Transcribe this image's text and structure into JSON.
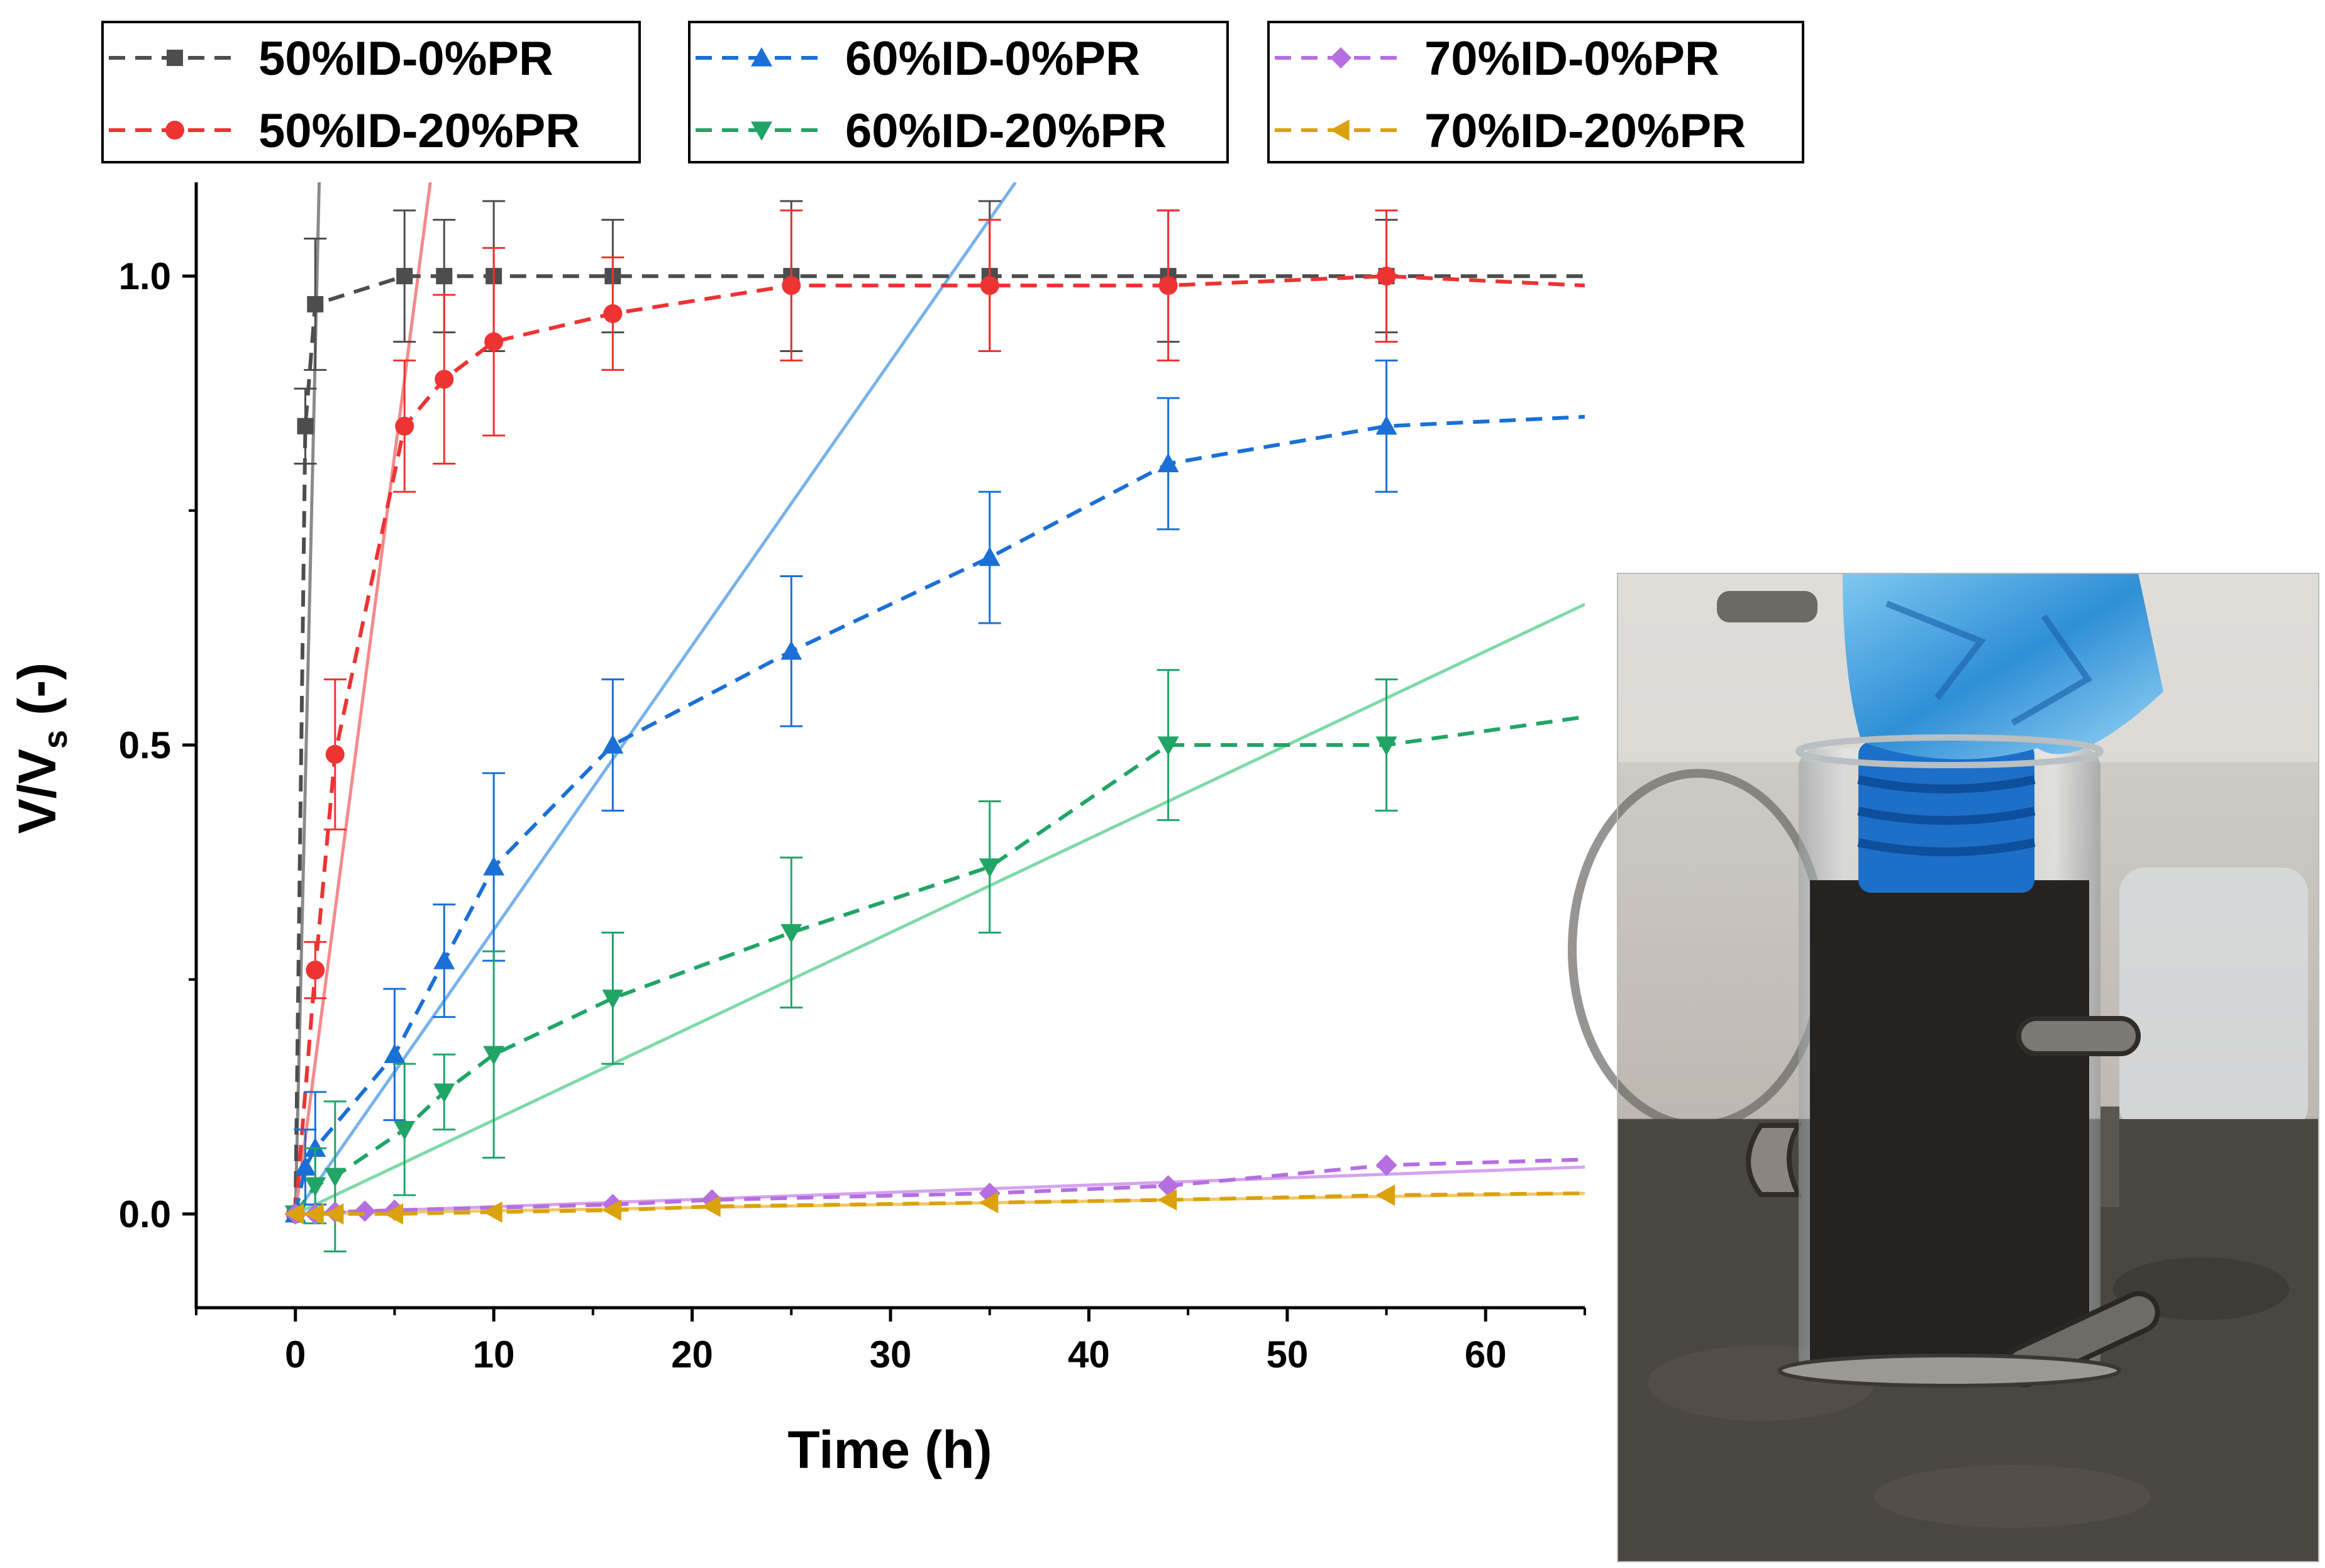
{
  "chart_data": {
    "type": "line",
    "xlabel": "Time (h)",
    "ylabel": "V/V",
    "ylabel_sub": "s",
    "ylabel_suffix": " (-)",
    "xlim": [
      -5,
      65
    ],
    "ylim": [
      -0.1,
      1.1
    ],
    "x_ticks": [
      0,
      10,
      20,
      30,
      40,
      50,
      60
    ],
    "y_ticks": [
      0.0,
      0.5,
      1.0
    ],
    "y_tick_labels": [
      "0.0",
      "0.5",
      "1.0"
    ],
    "legend_placement": "top",
    "series": [
      {
        "name": "50%ID-0%PR",
        "color": "#4d4d4d",
        "marker": "square",
        "x": [
          0,
          0.5,
          1,
          5.5,
          7.5,
          10,
          16,
          25,
          35,
          44,
          55,
          65
        ],
        "y": [
          0,
          0.84,
          0.97,
          1.0,
          1.0,
          1.0,
          1.0,
          1.0,
          1.0,
          1.0,
          1.0,
          1.0
        ],
        "err": [
          0,
          0.04,
          0.07,
          0.07,
          0.06,
          0.08,
          0.06,
          0.08,
          0.08,
          0.07,
          0.06,
          0
        ],
        "fit": [
          [
            0,
            0
          ],
          [
            1.2,
            1.1
          ]
        ],
        "fit_color": "#8a8a8a"
      },
      {
        "name": "50%ID-20%PR",
        "color": "#ee3333",
        "marker": "circle",
        "x": [
          0,
          1,
          2,
          5.5,
          7.5,
          10,
          16,
          25,
          35,
          44,
          55,
          65
        ],
        "y": [
          0,
          0.26,
          0.49,
          0.84,
          0.89,
          0.93,
          0.96,
          0.99,
          0.99,
          0.99,
          1.0,
          0.99
        ],
        "err": [
          0,
          0.03,
          0.08,
          0.07,
          0.09,
          0.1,
          0.06,
          0.08,
          0.07,
          0.08,
          0.07,
          0
        ],
        "fit": [
          [
            0,
            0
          ],
          [
            6.8,
            1.1
          ]
        ],
        "fit_color": "#f48a8a"
      },
      {
        "name": "60%ID-0%PR",
        "color": "#1a70d6",
        "marker": "triangle-up",
        "x": [
          0,
          0.5,
          1,
          5,
          7.5,
          10,
          16,
          25,
          35,
          44,
          55,
          65
        ],
        "y": [
          0,
          0.05,
          0.07,
          0.17,
          0.27,
          0.37,
          0.5,
          0.6,
          0.7,
          0.8,
          0.84,
          0.85
        ],
        "err": [
          0,
          0.04,
          0.06,
          0.07,
          0.06,
          0.1,
          0.07,
          0.08,
          0.07,
          0.07,
          0.07,
          0
        ],
        "fit": [
          [
            0,
            0
          ],
          [
            36.3,
            1.1
          ]
        ],
        "fit_color": "#78b2ea"
      },
      {
        "name": "60%ID-20%PR",
        "color": "#20a567",
        "marker": "triangle-down",
        "x": [
          0,
          1,
          2,
          5.5,
          7.5,
          10,
          16,
          25,
          35,
          44,
          55,
          65
        ],
        "y": [
          0,
          0.03,
          0.04,
          0.09,
          0.13,
          0.17,
          0.23,
          0.3,
          0.37,
          0.5,
          0.5,
          0.53
        ],
        "err": [
          0,
          0.04,
          0.08,
          0.07,
          0.04,
          0.11,
          0.07,
          0.08,
          0.07,
          0.08,
          0.07,
          0
        ],
        "fit": [
          [
            0,
            0
          ],
          [
            65,
            0.65
          ]
        ],
        "fit_color": "#7fd9a9"
      },
      {
        "name": "70%ID-0%PR",
        "color": "#b56fe0",
        "marker": "diamond",
        "x": [
          0,
          1,
          2,
          3.5,
          5,
          16,
          21,
          35,
          44,
          55,
          65
        ],
        "y": [
          0,
          0,
          0.002,
          0.003,
          0.004,
          0.01,
          0.015,
          0.022,
          0.03,
          0.052,
          0.058
        ],
        "fit": [
          [
            0,
            0
          ],
          [
            65,
            0.05
          ]
        ],
        "fit_color": "#d5a3f0"
      },
      {
        "name": "70%ID-20%PR",
        "color": "#dba20e",
        "marker": "triangle-left",
        "x": [
          0,
          1,
          2,
          5,
          10,
          16,
          21,
          35,
          44,
          55,
          65
        ],
        "y": [
          0,
          0,
          0,
          0,
          0.002,
          0.004,
          0.008,
          0.012,
          0.015,
          0.02,
          0.022
        ],
        "fit": [
          [
            0,
            0
          ],
          [
            65,
            0.022
          ]
        ],
        "fit_color": "#efc96a"
      }
    ]
  },
  "photo": {
    "description_icon": "photo-permeameter-beaker"
  }
}
